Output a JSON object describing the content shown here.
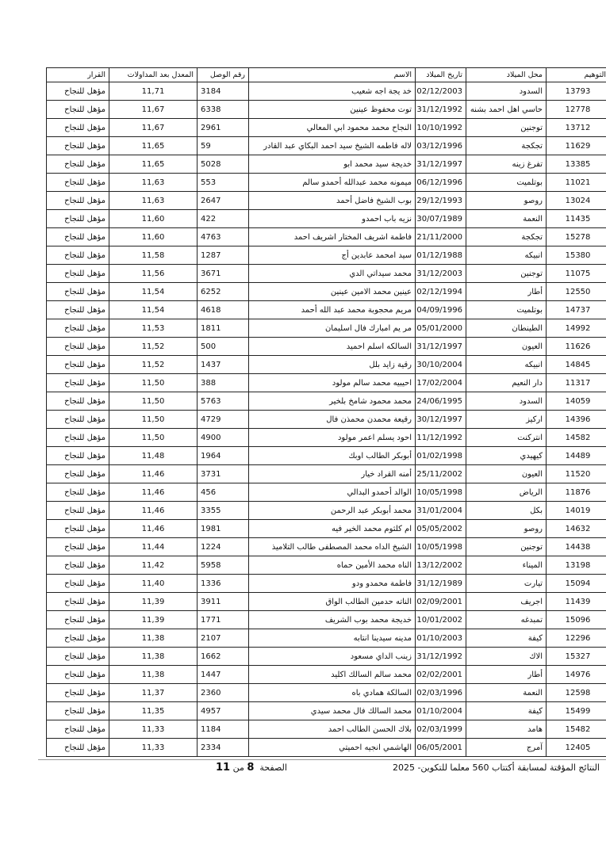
{
  "table": {
    "headers": [
      "التوهيم",
      "محل الميلاد",
      "تاريخ الميلاد",
      "الاسم",
      "رقم الوصل",
      "المعدل بعد المداولات",
      "القرار"
    ],
    "rows": [
      [
        "13793",
        "السدود",
        "02/12/2003",
        "خد يجة اجه شعيب",
        "3184",
        "11,71",
        "مؤهل للنجاح"
      ],
      [
        "12778",
        "حاسي اهل احمد بشنه",
        "31/12/1992",
        "توت محفوظ عينين",
        "6338",
        "11,67",
        "مؤهل للنجاح"
      ],
      [
        "13712",
        "توجنين",
        "10/10/1992",
        "النجاح محمد محمود ابي المعالي",
        "2961",
        "11,67",
        "مؤهل للنجاح"
      ],
      [
        "11629",
        "تجكجة",
        "03/12/1996",
        "لاله فاطمه الشيخ سيد احمد البكاي عبد القادر",
        "59",
        "11,65",
        "مؤهل للنجاح"
      ],
      [
        "13385",
        "تفرغ زينه",
        "31/12/1997",
        "خديجة سيد محمد ابو",
        "5028",
        "11,65",
        "مؤهل للنجاح"
      ],
      [
        "11021",
        "بوتلميت",
        "06/12/1996",
        "ميمونه محمد عبدالله أحمدو سالم",
        "553",
        "11,63",
        "مؤهل للنجاح"
      ],
      [
        "13024",
        "روصو",
        "29/12/1993",
        "بوب الشيخ فاضل أحمد",
        "2647",
        "11,63",
        "مؤهل للنجاح"
      ],
      [
        "11435",
        "النعمة",
        "30/07/1989",
        "نزيه باب احمدو",
        "422",
        "11,60",
        "مؤهل للنجاح"
      ],
      [
        "15278",
        "تجكجة",
        "21/11/2000",
        "فاطمة اشريف المختار اشريف احمد",
        "4763",
        "11,60",
        "مؤهل للنجاح"
      ],
      [
        "15380",
        "انبيكه",
        "01/12/1988",
        "سيد امحمد عابدين أج",
        "1287",
        "11,58",
        "مؤهل للنجاح"
      ],
      [
        "11075",
        "توجنين",
        "31/12/2003",
        "محمد سيداتي الدي",
        "3671",
        "11,56",
        "مؤهل للنجاح"
      ],
      [
        "12550",
        "أطار",
        "02/12/1994",
        "عينين محمد الامين عينين",
        "6252",
        "11,54",
        "مؤهل للنجاح"
      ],
      [
        "14737",
        "بوتلميت",
        "04/09/1996",
        "مريم محجوبة محمد عبد الله أحمد",
        "4618",
        "11,54",
        "مؤهل للنجاح"
      ],
      [
        "14992",
        "الطينطان",
        "05/01/2000",
        "مر يم امبارك فال اسليمان",
        "1811",
        "11,53",
        "مؤهل للنجاح"
      ],
      [
        "11626",
        "العيون",
        "31/12/1997",
        "السالكه اسلم احميد",
        "500",
        "11,52",
        "مؤهل للنجاح"
      ],
      [
        "14845",
        "انبيكه",
        "30/10/2004",
        "رقية زايد بلل",
        "1437",
        "11,52",
        "مؤهل للنجاح"
      ],
      [
        "11317",
        "دار النعيم",
        "17/02/2004",
        "احيبيه محمد سالم مولود",
        "388",
        "11,50",
        "مؤهل للنجاح"
      ],
      [
        "14059",
        "السدود",
        "24/06/1995",
        "محمد محمود شامخ بلخير",
        "5763",
        "11,50",
        "مؤهل للنجاح"
      ],
      [
        "14396",
        "اركيز",
        "30/12/1997",
        "رقيعة محمدن محمذن فال",
        "4729",
        "11,50",
        "مؤهل للنجاح"
      ],
      [
        "14582",
        "انتركنت",
        "11/12/1992",
        "احود يسلم اعمر مولود",
        "4900",
        "11,50",
        "مؤهل للنجاح"
      ],
      [
        "14489",
        "كيهيدي",
        "01/02/1998",
        "أبوبكر الطالب اوبك",
        "1964",
        "11,48",
        "مؤهل للنجاح"
      ],
      [
        "11520",
        "العيون",
        "25/11/2002",
        "أمنه القراد خيار",
        "3731",
        "11,46",
        "مؤهل للنجاح"
      ],
      [
        "11876",
        "الرياض",
        "10/05/1998",
        "الوالد أحمدو البدالي",
        "456",
        "11,46",
        "مؤهل للنجاح"
      ],
      [
        "14019",
        "بكل",
        "31/01/2004",
        "محمد أبوبكر عبد الرحمن",
        "3355",
        "11,46",
        "مؤهل للنجاح"
      ],
      [
        "14632",
        "روصو",
        "05/05/2002",
        "ام كلثوم محمد الخير فيه",
        "1981",
        "11,46",
        "مؤهل للنجاح"
      ],
      [
        "14438",
        "توجنين",
        "10/05/1998",
        "الشيخ الداه محمد المصطفى طالب التلاميذ",
        "1224",
        "11,44",
        "مؤهل للنجاح"
      ],
      [
        "13198",
        "الميناء",
        "13/12/2002",
        "الناه محمد الأمين حماه",
        "5958",
        "11,42",
        "مؤهل للنجاح"
      ],
      [
        "15094",
        "تيارت",
        "31/12/1989",
        "فاطمة محمدو ودو",
        "1336",
        "11,40",
        "مؤهل للنجاح"
      ],
      [
        "11439",
        "اجريف",
        "02/09/2001",
        "الناته حدمين الطالب الواق",
        "3911",
        "11,39",
        "مؤهل للنجاح"
      ],
      [
        "15096",
        "تمبدغه",
        "10/01/2002",
        "خديجة محمد بوب الشريف",
        "1771",
        "11,39",
        "مؤهل للنجاح"
      ],
      [
        "12296",
        "كيفة",
        "01/10/2003",
        "مدينه سيدينا انتابه",
        "2107",
        "11,38",
        "مؤهل للنجاح"
      ],
      [
        "15327",
        "الاك",
        "31/12/1992",
        "زينب الداي مسعود",
        "1662",
        "11,38",
        "مؤهل للنجاح"
      ],
      [
        "14976",
        "أطار",
        "02/02/2001",
        "محمد سالم السالك اكليد",
        "1447",
        "11,38",
        "مؤهل للنجاح"
      ],
      [
        "12598",
        "النعمة",
        "02/03/1996",
        "السالكة همادي باه",
        "2360",
        "11,37",
        "مؤهل للنجاح"
      ],
      [
        "15499",
        "كيفة",
        "01/10/2004",
        "محمد السالك فال محمد سيدي",
        "4957",
        "11,35",
        "مؤهل للنجاح"
      ],
      [
        "15482",
        "هامد",
        "02/03/1999",
        "بلاك الحسن الطالب احمد",
        "1184",
        "11,33",
        "مؤهل للنجاح"
      ],
      [
        "12405",
        "آمرج",
        "06/05/2001",
        "الهاشمي انجيه احميتي",
        "2334",
        "11,33",
        "مؤهل للنجاح"
      ]
    ]
  },
  "footer": {
    "title": "النتائج المؤقتة لمسابقة أكتتاب 560 معلما للتكوين- 2025",
    "page_label": "الصفحة",
    "page_current": "8",
    "page_of": "من",
    "page_total": "11"
  }
}
